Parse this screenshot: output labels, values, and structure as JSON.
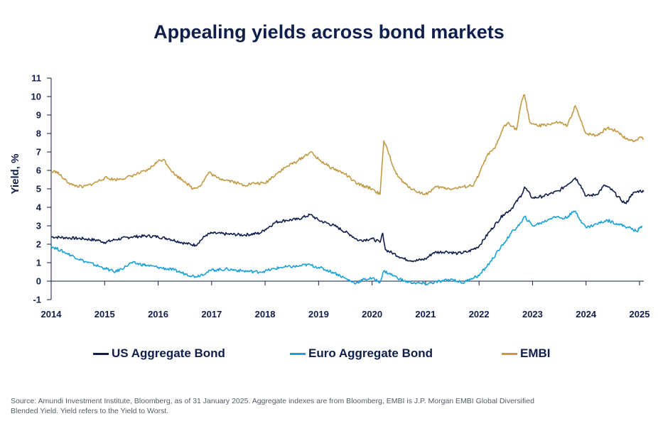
{
  "title": "Appealing yields across bond markets",
  "source_note": "Source: Amundi Investment Institute, Bloomberg, as of 31 January 2025. Aggregate indexes are from Bloomberg, EMBI is J.P. Morgan EMBI Global Diversified Blended Yield. Yield refers to the Yield to Worst.",
  "colors": {
    "us": "#0f1e4a",
    "euro": "#1ba1d8",
    "embi": "#c19a43",
    "axis": "#0f1e4a"
  },
  "chart_data": {
    "type": "line",
    "title": "Appealing yields across bond markets",
    "xlabel": "",
    "ylabel": "Yield, %",
    "xlim": [
      2014.0,
      2025.08
    ],
    "ylim": [
      -1,
      11
    ],
    "yticks": [
      "-1",
      "0",
      "1",
      "2",
      "3",
      "4",
      "5",
      "6",
      "7",
      "8",
      "9",
      "10",
      "11"
    ],
    "xticks": [
      "2014",
      "2015",
      "2016",
      "2017",
      "2018",
      "2019",
      "2020",
      "2021",
      "2022",
      "2023",
      "2024",
      "2025"
    ],
    "legend_position": "bottom",
    "series": [
      {
        "name": "US Aggregate Bond",
        "color": "#0f1e4a",
        "points": [
          [
            2014.0,
            2.4
          ],
          [
            2014.3,
            2.35
          ],
          [
            2014.6,
            2.3
          ],
          [
            2014.9,
            2.2
          ],
          [
            2015.0,
            2.1
          ],
          [
            2015.2,
            2.25
          ],
          [
            2015.5,
            2.4
          ],
          [
            2015.8,
            2.45
          ],
          [
            2016.0,
            2.4
          ],
          [
            2016.2,
            2.3
          ],
          [
            2016.5,
            2.05
          ],
          [
            2016.7,
            1.95
          ],
          [
            2016.9,
            2.5
          ],
          [
            2017.0,
            2.6
          ],
          [
            2017.3,
            2.55
          ],
          [
            2017.6,
            2.5
          ],
          [
            2017.9,
            2.6
          ],
          [
            2018.0,
            2.8
          ],
          [
            2018.2,
            3.2
          ],
          [
            2018.4,
            3.3
          ],
          [
            2018.6,
            3.35
          ],
          [
            2018.85,
            3.6
          ],
          [
            2019.0,
            3.3
          ],
          [
            2019.3,
            3.0
          ],
          [
            2019.6,
            2.5
          ],
          [
            2019.75,
            2.2
          ],
          [
            2020.0,
            2.3
          ],
          [
            2020.15,
            2.1
          ],
          [
            2020.2,
            2.6
          ],
          [
            2020.25,
            1.7
          ],
          [
            2020.4,
            1.5
          ],
          [
            2020.6,
            1.2
          ],
          [
            2020.8,
            1.1
          ],
          [
            2021.0,
            1.2
          ],
          [
            2021.15,
            1.55
          ],
          [
            2021.4,
            1.6
          ],
          [
            2021.6,
            1.5
          ],
          [
            2021.8,
            1.6
          ],
          [
            2022.0,
            1.9
          ],
          [
            2022.2,
            2.7
          ],
          [
            2022.45,
            3.6
          ],
          [
            2022.6,
            3.9
          ],
          [
            2022.8,
            4.7
          ],
          [
            2022.85,
            5.1
          ],
          [
            2023.0,
            4.5
          ],
          [
            2023.2,
            4.6
          ],
          [
            2023.5,
            4.9
          ],
          [
            2023.8,
            5.6
          ],
          [
            2023.9,
            5.2
          ],
          [
            2024.0,
            4.6
          ],
          [
            2024.2,
            4.7
          ],
          [
            2024.35,
            5.2
          ],
          [
            2024.5,
            4.9
          ],
          [
            2024.65,
            4.4
          ],
          [
            2024.75,
            4.2
          ],
          [
            2024.85,
            4.7
          ],
          [
            2025.0,
            4.9
          ],
          [
            2025.08,
            4.85
          ]
        ]
      },
      {
        "name": "Euro Aggregate Bond",
        "color": "#1ba1d8",
        "points": [
          [
            2014.0,
            1.9
          ],
          [
            2014.3,
            1.5
          ],
          [
            2014.6,
            1.1
          ],
          [
            2014.9,
            0.8
          ],
          [
            2015.0,
            0.7
          ],
          [
            2015.2,
            0.5
          ],
          [
            2015.4,
            0.8
          ],
          [
            2015.5,
            1.0
          ],
          [
            2015.8,
            0.85
          ],
          [
            2016.0,
            0.75
          ],
          [
            2016.3,
            0.6
          ],
          [
            2016.5,
            0.4
          ],
          [
            2016.7,
            0.25
          ],
          [
            2016.9,
            0.45
          ],
          [
            2017.0,
            0.6
          ],
          [
            2017.3,
            0.65
          ],
          [
            2017.6,
            0.55
          ],
          [
            2017.9,
            0.5
          ],
          [
            2018.0,
            0.55
          ],
          [
            2018.3,
            0.75
          ],
          [
            2018.6,
            0.8
          ],
          [
            2018.8,
            0.9
          ],
          [
            2019.0,
            0.75
          ],
          [
            2019.3,
            0.45
          ],
          [
            2019.6,
            0.0
          ],
          [
            2019.7,
            -0.1
          ],
          [
            2019.85,
            0.1
          ],
          [
            2020.0,
            0.15
          ],
          [
            2020.15,
            -0.05
          ],
          [
            2020.22,
            0.55
          ],
          [
            2020.4,
            0.3
          ],
          [
            2020.6,
            0.0
          ],
          [
            2020.8,
            -0.1
          ],
          [
            2021.0,
            -0.15
          ],
          [
            2021.3,
            0.0
          ],
          [
            2021.5,
            0.1
          ],
          [
            2021.7,
            -0.1
          ],
          [
            2021.85,
            0.15
          ],
          [
            2022.0,
            0.3
          ],
          [
            2022.2,
            1.0
          ],
          [
            2022.4,
            1.8
          ],
          [
            2022.6,
            2.6
          ],
          [
            2022.8,
            3.2
          ],
          [
            2022.85,
            3.5
          ],
          [
            2023.0,
            3.0
          ],
          [
            2023.2,
            3.2
          ],
          [
            2023.4,
            3.5
          ],
          [
            2023.6,
            3.4
          ],
          [
            2023.8,
            3.8
          ],
          [
            2023.9,
            3.3
          ],
          [
            2024.0,
            2.9
          ],
          [
            2024.2,
            3.1
          ],
          [
            2024.4,
            3.3
          ],
          [
            2024.6,
            3.1
          ],
          [
            2024.8,
            2.9
          ],
          [
            2024.95,
            2.7
          ],
          [
            2025.05,
            3.0
          ]
        ]
      },
      {
        "name": "EMBI",
        "color": "#c19a43",
        "points": [
          [
            2014.0,
            5.9
          ],
          [
            2014.1,
            5.95
          ],
          [
            2014.25,
            5.5
          ],
          [
            2014.4,
            5.2
          ],
          [
            2014.6,
            5.1
          ],
          [
            2014.8,
            5.3
          ],
          [
            2015.0,
            5.6
          ],
          [
            2015.2,
            5.5
          ],
          [
            2015.4,
            5.6
          ],
          [
            2015.6,
            5.8
          ],
          [
            2015.8,
            6.0
          ],
          [
            2016.0,
            6.5
          ],
          [
            2016.1,
            6.6
          ],
          [
            2016.3,
            5.8
          ],
          [
            2016.5,
            5.4
          ],
          [
            2016.65,
            5.0
          ],
          [
            2016.8,
            5.2
          ],
          [
            2016.95,
            5.9
          ],
          [
            2017.1,
            5.6
          ],
          [
            2017.4,
            5.4
          ],
          [
            2017.6,
            5.2
          ],
          [
            2017.8,
            5.3
          ],
          [
            2018.0,
            5.3
          ],
          [
            2018.2,
            5.8
          ],
          [
            2018.4,
            6.2
          ],
          [
            2018.6,
            6.5
          ],
          [
            2018.85,
            7.0
          ],
          [
            2019.0,
            6.6
          ],
          [
            2019.2,
            6.2
          ],
          [
            2019.5,
            5.8
          ],
          [
            2019.7,
            5.3
          ],
          [
            2020.0,
            5.0
          ],
          [
            2020.15,
            4.7
          ],
          [
            2020.22,
            7.6
          ],
          [
            2020.3,
            7.0
          ],
          [
            2020.45,
            5.8
          ],
          [
            2020.6,
            5.3
          ],
          [
            2020.8,
            4.9
          ],
          [
            2021.0,
            4.7
          ],
          [
            2021.2,
            5.1
          ],
          [
            2021.5,
            5.0
          ],
          [
            2021.7,
            5.1
          ],
          [
            2021.9,
            5.2
          ],
          [
            2022.0,
            5.8
          ],
          [
            2022.15,
            6.8
          ],
          [
            2022.3,
            7.2
          ],
          [
            2022.45,
            8.3
          ],
          [
            2022.55,
            8.6
          ],
          [
            2022.7,
            8.2
          ],
          [
            2022.8,
            9.8
          ],
          [
            2022.85,
            10.1
          ],
          [
            2022.95,
            8.6
          ],
          [
            2023.1,
            8.4
          ],
          [
            2023.3,
            8.5
          ],
          [
            2023.5,
            8.6
          ],
          [
            2023.65,
            8.4
          ],
          [
            2023.8,
            9.5
          ],
          [
            2023.9,
            8.7
          ],
          [
            2024.0,
            8.0
          ],
          [
            2024.2,
            7.9
          ],
          [
            2024.4,
            8.3
          ],
          [
            2024.6,
            8.1
          ],
          [
            2024.75,
            7.7
          ],
          [
            2024.9,
            7.6
          ],
          [
            2025.0,
            7.8
          ],
          [
            2025.08,
            7.7
          ]
        ]
      }
    ]
  }
}
